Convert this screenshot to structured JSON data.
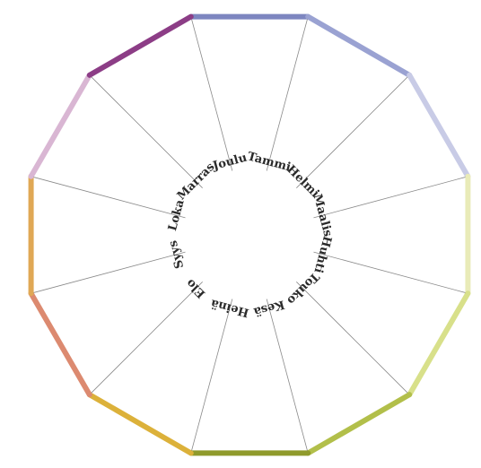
{
  "months": [
    {
      "label": "Tammi",
      "color": "#7d86c0"
    },
    {
      "label": "Helmi",
      "color": "#9aa2d2"
    },
    {
      "label": "Maalis",
      "color": "#c8cbe6"
    },
    {
      "label": "Huhti",
      "color": "#e9ebb8"
    },
    {
      "label": "Touko",
      "color": "#d8e08a"
    },
    {
      "label": "Kesä",
      "color": "#b2bf4a"
    },
    {
      "label": "Heinä",
      "color": "#8f9a2c"
    },
    {
      "label": "Elo",
      "color": "#dcb13a"
    },
    {
      "label": "Syys",
      "color": "#dc8a70"
    },
    {
      "label": "Loka",
      "color": "#e0a855"
    },
    {
      "label": "Marras",
      "color": "#d9b6d3"
    },
    {
      "label": "Joulu",
      "color": "#8c3d86"
    }
  ],
  "extra_edge_color": "#5c2455",
  "spoke_color": "#8a8a8a"
}
